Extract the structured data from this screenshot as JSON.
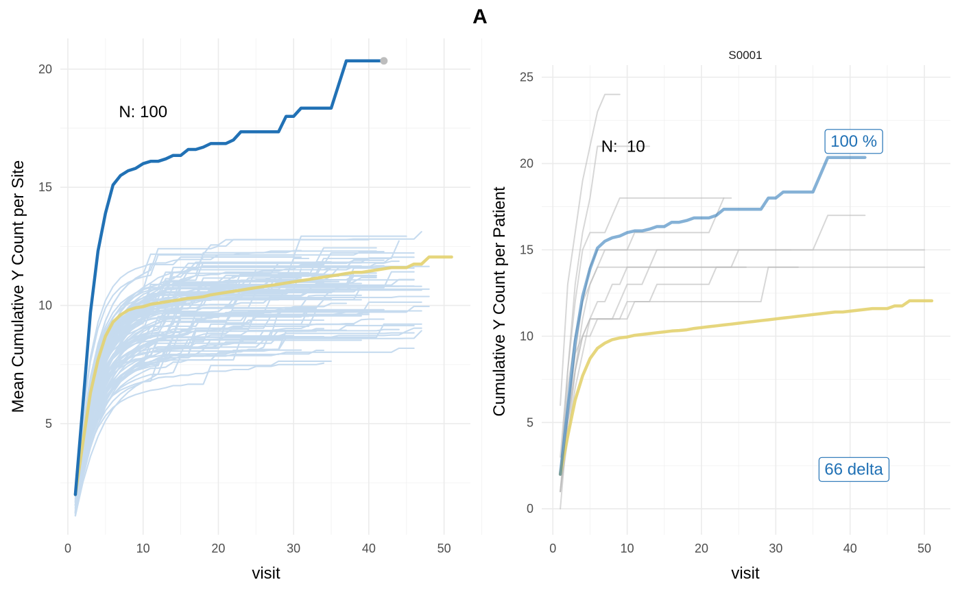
{
  "title": "A",
  "colors": {
    "site_lines": "#c6dbef",
    "patient_lines": "#bdbdbd",
    "highlight": "#2171b5",
    "mean": "#e3d26f",
    "endpoint": "#bdbdbd",
    "box_text": "#2171b5",
    "grid": "#ebebeb"
  },
  "chart_data": [
    {
      "type": "line",
      "panel": "left",
      "xlabel": "visit",
      "ylabel": "Mean Cumulative Y Count per Site",
      "xlim": [
        -1,
        53.5
      ],
      "ylim": [
        0.3,
        21.3
      ],
      "x_ticks": [
        0,
        10,
        20,
        30,
        40,
        50
      ],
      "y_ticks": [
        5,
        10,
        15,
        20
      ],
      "grid": true,
      "annotation": "N: 100",
      "annotation_at": [
        10,
        18.2
      ],
      "series": [
        {
          "role": "highlight",
          "x": [
            1,
            2,
            3,
            4,
            5,
            6,
            7,
            8,
            9,
            10,
            11,
            12,
            13,
            14,
            15,
            16,
            17,
            18,
            19,
            20,
            21,
            22,
            23,
            24,
            25,
            26,
            27,
            28,
            29,
            30,
            31,
            32,
            33,
            34,
            35,
            36,
            37,
            38,
            39,
            40,
            41,
            42
          ],
          "y": [
            2.0,
            5.8,
            9.7,
            12.3,
            13.9,
            15.1,
            15.5,
            15.7,
            15.8,
            16.0,
            16.1,
            16.1,
            16.2,
            16.35,
            16.35,
            16.6,
            16.6,
            16.7,
            16.85,
            16.85,
            16.85,
            17.0,
            17.35,
            17.35,
            17.35,
            17.35,
            17.35,
            17.35,
            18.0,
            18.0,
            18.35,
            18.35,
            18.35,
            18.35,
            18.35,
            19.35,
            20.35,
            20.35,
            20.35,
            20.35,
            20.35,
            20.35
          ]
        },
        {
          "role": "mean",
          "x": [
            1,
            2,
            3,
            4,
            5,
            6,
            7,
            8,
            9,
            10,
            11,
            12,
            13,
            14,
            15,
            16,
            17,
            18,
            19,
            20,
            21,
            22,
            23,
            24,
            25,
            26,
            27,
            28,
            29,
            30,
            31,
            32,
            33,
            34,
            35,
            36,
            37,
            38,
            39,
            40,
            41,
            42,
            43,
            44,
            45,
            46,
            47,
            48,
            49,
            50,
            51
          ],
          "y": [
            2.0,
            4.2,
            6.3,
            7.7,
            8.7,
            9.3,
            9.6,
            9.8,
            9.9,
            9.95,
            10.05,
            10.1,
            10.15,
            10.2,
            10.25,
            10.3,
            10.33,
            10.37,
            10.45,
            10.5,
            10.55,
            10.6,
            10.65,
            10.7,
            10.75,
            10.8,
            10.85,
            10.9,
            10.95,
            11.0,
            11.05,
            11.1,
            11.15,
            11.2,
            11.25,
            11.3,
            11.35,
            11.4,
            11.4,
            11.45,
            11.5,
            11.55,
            11.6,
            11.6,
            11.6,
            11.75,
            11.75,
            12.05,
            12.05,
            12.05,
            12.05
          ]
        }
      ],
      "endpoint": {
        "x": 42,
        "y": 20.35
      }
    },
    {
      "type": "line",
      "panel": "right",
      "strip": "S0001",
      "xlabel": "visit",
      "ylabel": "Cumulative Y Count per Patient",
      "xlim": [
        -1.5,
        53.5
      ],
      "ylim": [
        -1.5,
        25.7
      ],
      "x_ticks": [
        0,
        10,
        20,
        30,
        40,
        50
      ],
      "y_ticks": [
        0,
        5,
        10,
        15,
        20,
        25
      ],
      "grid": true,
      "annotation": "N:  10",
      "annotation_at": [
        6.5,
        21.0
      ],
      "box_labels": [
        {
          "text": "100 %",
          "x": 40.5,
          "y": 21.3
        },
        {
          "text": "66 delta",
          "x": 40.5,
          "y": 2.3
        }
      ],
      "patients": [
        {
          "x": [
            1,
            2,
            3,
            4,
            5,
            6,
            7,
            8,
            9
          ],
          "y": [
            6,
            13,
            16,
            19,
            21,
            23,
            24,
            24,
            24
          ]
        },
        {
          "x": [
            1,
            2,
            3,
            4,
            5,
            6,
            7,
            8,
            9,
            10,
            11,
            12,
            13
          ],
          "y": [
            2,
            8,
            13,
            16,
            18,
            21,
            21,
            21,
            21,
            21,
            21,
            21,
            21
          ]
        },
        {
          "x": [
            1,
            2,
            3,
            4,
            5,
            6,
            7,
            8,
            9,
            10,
            11,
            12,
            13,
            14,
            15,
            16,
            17,
            18,
            19,
            20,
            21,
            22,
            23,
            24,
            25,
            26,
            27,
            28,
            29,
            30,
            31,
            32,
            33,
            34,
            35,
            36,
            37,
            38,
            39,
            40,
            41,
            42
          ],
          "y": [
            1,
            5,
            9,
            12,
            14,
            15,
            15,
            15,
            15,
            15,
            15,
            15,
            15,
            15,
            15,
            15,
            15,
            15,
            15,
            15,
            15,
            15,
            15,
            15,
            15,
            15,
            15,
            15,
            15,
            15,
            15,
            15,
            15,
            15,
            15,
            16,
            17,
            17,
            17,
            17,
            17,
            17
          ]
        },
        {
          "x": [
            1,
            2,
            3,
            4,
            5,
            6,
            7,
            8,
            9,
            10,
            11,
            12,
            13,
            14,
            15,
            16,
            17,
            18,
            19,
            20,
            21,
            22,
            23,
            24,
            25,
            26,
            27,
            28,
            29,
            30,
            31,
            32,
            33
          ],
          "y": [
            0,
            5,
            8,
            10,
            11,
            11,
            11,
            11,
            11,
            12,
            12,
            12,
            12,
            12,
            12,
            12,
            12,
            12,
            12,
            12,
            12,
            12,
            12,
            12,
            12,
            12,
            12,
            12,
            14,
            14,
            14,
            14,
            14
          ]
        },
        {
          "x": [
            1,
            2,
            3,
            4,
            5,
            6,
            7,
            8,
            9,
            10,
            11,
            12,
            13,
            14,
            15,
            16,
            17,
            18,
            19,
            20,
            21,
            22,
            23,
            24,
            25,
            26,
            27,
            28,
            29,
            30,
            31,
            32
          ],
          "y": [
            1,
            6,
            9,
            10,
            11,
            11,
            11,
            11,
            12,
            13,
            13,
            13,
            14,
            14,
            14,
            14,
            14,
            14,
            14,
            14,
            14,
            14,
            14,
            14,
            15,
            15,
            15,
            15,
            15,
            15,
            15,
            15
          ]
        },
        {
          "x": [
            1,
            2,
            3,
            4,
            5,
            6,
            7,
            8,
            9,
            10,
            11,
            12,
            13,
            14,
            15,
            16,
            17,
            18,
            19,
            20,
            21,
            22,
            23,
            24
          ],
          "y": [
            2,
            7,
            10,
            12,
            13,
            14,
            15,
            15,
            15,
            15,
            16,
            16,
            16,
            16,
            16,
            16,
            16,
            16,
            16,
            16,
            16,
            17,
            18,
            18
          ]
        },
        {
          "x": [
            1,
            2,
            3,
            4,
            5,
            6,
            7,
            8,
            9,
            10,
            11,
            12,
            13,
            14,
            15,
            16,
            17,
            18,
            19,
            20,
            21,
            22,
            23
          ],
          "y": [
            3,
            8,
            12,
            15,
            16,
            16,
            16,
            17,
            18,
            18,
            18,
            18,
            18,
            18,
            18,
            18,
            18,
            18,
            18,
            18,
            18,
            18,
            18
          ]
        },
        {
          "x": [
            1,
            2,
            3,
            4,
            5,
            6,
            7,
            8,
            9,
            10,
            11,
            12,
            13,
            14,
            15,
            16,
            17,
            18,
            19,
            20,
            21,
            22,
            23,
            24,
            25,
            26,
            27,
            28,
            29,
            30,
            31,
            32,
            33,
            34,
            35,
            36,
            37,
            38,
            39,
            40,
            41,
            42,
            43,
            44,
            45,
            46,
            47,
            48,
            49,
            50
          ],
          "y": [
            2,
            4,
            8,
            11,
            13,
            14,
            14,
            14,
            14,
            14,
            14,
            14,
            14,
            15,
            15,
            15,
            15,
            15,
            15,
            15,
            15,
            15,
            15,
            15,
            15,
            15,
            15,
            15,
            15,
            15,
            15,
            15,
            15,
            15,
            15,
            15,
            15,
            15,
            15,
            15,
            15,
            15,
            15,
            15,
            15,
            15,
            15,
            15,
            15,
            15
          ]
        },
        {
          "x": [
            1,
            2,
            3,
            4,
            5,
            6,
            7,
            8,
            9,
            10,
            11,
            12,
            13,
            14,
            15,
            16,
            17,
            18,
            19,
            20,
            21,
            22,
            23,
            24,
            25,
            26
          ],
          "y": [
            1,
            5,
            8,
            10,
            10,
            11,
            11,
            11,
            11,
            11,
            12,
            12,
            12,
            13,
            13,
            13,
            13,
            13,
            13,
            13,
            13,
            14,
            14,
            14,
            14,
            14
          ]
        },
        {
          "x": [
            1,
            2,
            3,
            4,
            5,
            6,
            7,
            8,
            9,
            10,
            11,
            12,
            13,
            14,
            15,
            16,
            17,
            18,
            19,
            20,
            21,
            22,
            23,
            24,
            25,
            26,
            27,
            28,
            29,
            30,
            31,
            32,
            33,
            34,
            35,
            36,
            37,
            38,
            39,
            40,
            41,
            42,
            43,
            44,
            45,
            46,
            47,
            48,
            49,
            50
          ],
          "y": [
            1,
            4,
            7,
            9,
            11,
            12,
            12,
            13,
            13,
            14,
            14,
            14,
            14,
            14,
            14,
            14,
            14,
            14,
            14,
            14,
            14,
            14,
            14,
            14,
            14,
            14,
            14,
            14,
            14,
            14,
            14,
            14,
            14,
            14,
            14,
            14,
            14,
            14,
            14,
            14,
            14,
            14,
            14,
            14,
            14,
            14,
            14,
            14,
            14,
            14
          ]
        }
      ],
      "series": [
        {
          "role": "highlight",
          "x": [
            1,
            2,
            3,
            4,
            5,
            6,
            7,
            8,
            9,
            10,
            11,
            12,
            13,
            14,
            15,
            16,
            17,
            18,
            19,
            20,
            21,
            22,
            23,
            24,
            25,
            26,
            27,
            28,
            29,
            30,
            31,
            32,
            33,
            34,
            35,
            36,
            37,
            38,
            39,
            40,
            41,
            42
          ],
          "y": [
            2.0,
            5.8,
            9.7,
            12.3,
            13.9,
            15.1,
            15.5,
            15.7,
            15.8,
            16.0,
            16.1,
            16.1,
            16.2,
            16.35,
            16.35,
            16.6,
            16.6,
            16.7,
            16.85,
            16.85,
            16.85,
            17.0,
            17.35,
            17.35,
            17.35,
            17.35,
            17.35,
            17.35,
            18.0,
            18.0,
            18.35,
            18.35,
            18.35,
            18.35,
            18.35,
            19.35,
            20.35,
            20.35,
            20.35,
            20.35,
            20.35,
            20.35
          ]
        },
        {
          "role": "mean",
          "x": [
            1,
            2,
            3,
            4,
            5,
            6,
            7,
            8,
            9,
            10,
            11,
            12,
            13,
            14,
            15,
            16,
            17,
            18,
            19,
            20,
            21,
            22,
            23,
            24,
            25,
            26,
            27,
            28,
            29,
            30,
            31,
            32,
            33,
            34,
            35,
            36,
            37,
            38,
            39,
            40,
            41,
            42,
            43,
            44,
            45,
            46,
            47,
            48,
            49,
            50,
            51
          ],
          "y": [
            2.0,
            4.2,
            6.3,
            7.7,
            8.7,
            9.3,
            9.6,
            9.8,
            9.9,
            9.95,
            10.05,
            10.1,
            10.15,
            10.2,
            10.25,
            10.3,
            10.33,
            10.37,
            10.45,
            10.5,
            10.55,
            10.6,
            10.65,
            10.7,
            10.75,
            10.8,
            10.85,
            10.9,
            10.95,
            11.0,
            11.05,
            11.1,
            11.15,
            11.2,
            11.25,
            11.3,
            11.35,
            11.4,
            11.4,
            11.45,
            11.5,
            11.55,
            11.6,
            11.6,
            11.6,
            11.75,
            11.75,
            12.05,
            12.05,
            12.05,
            12.05
          ]
        }
      ]
    }
  ]
}
